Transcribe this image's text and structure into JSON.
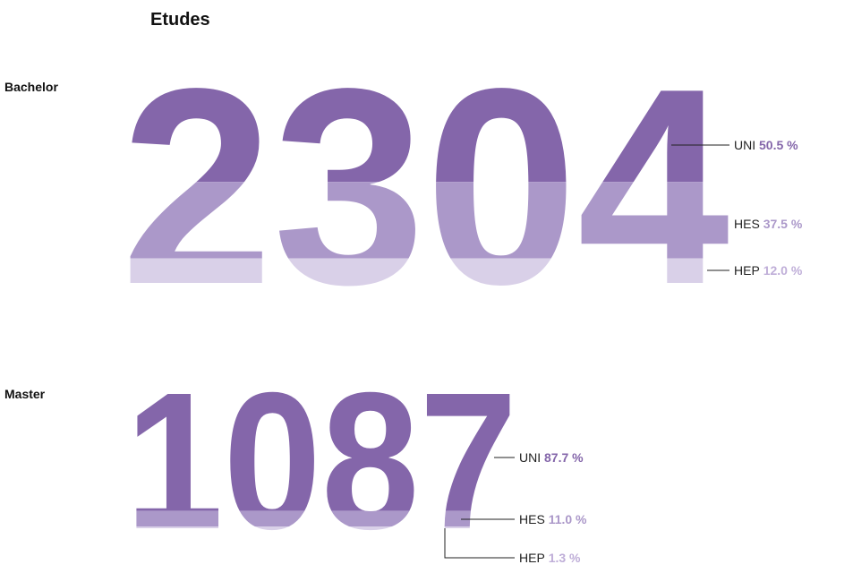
{
  "title": "Etudes",
  "chart_data": [
    {
      "type": "number",
      "title": "Bachelor",
      "total": 2304,
      "categories": [
        "UNI",
        "HES",
        "HEP"
      ],
      "values": [
        50.5,
        37.5,
        12.0
      ],
      "value_labels": [
        "50.5 %",
        "37.5 %",
        "12.0 %"
      ],
      "colors": [
        "#8466aa",
        "#ab98c9",
        "#d9d0e8"
      ]
    },
    {
      "type": "number",
      "title": "Master",
      "total": 1087,
      "categories": [
        "UNI",
        "HES",
        "HEP"
      ],
      "values": [
        87.7,
        11.0,
        1.3
      ],
      "value_labels": [
        "87.7 %",
        "11.0 %",
        "1.3 %"
      ],
      "colors": [
        "#8466aa",
        "#ab98c9",
        "#d9d0e8"
      ]
    }
  ]
}
